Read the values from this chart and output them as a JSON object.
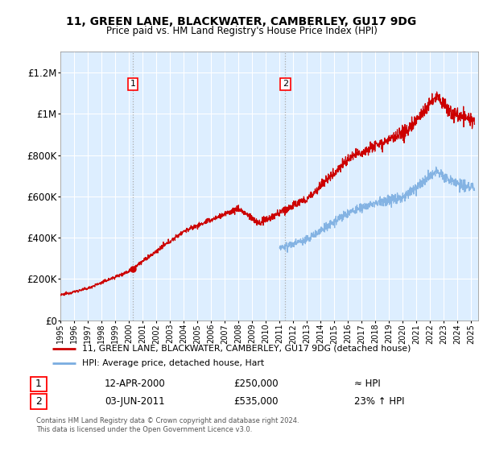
{
  "title": "11, GREEN LANE, BLACKWATER, CAMBERLEY, GU17 9DG",
  "subtitle": "Price paid vs. HM Land Registry's House Price Index (HPI)",
  "legend_line1": "11, GREEN LANE, BLACKWATER, CAMBERLEY, GU17 9DG (detached house)",
  "legend_line2": "HPI: Average price, detached house, Hart",
  "annotation1_date": "12-APR-2000",
  "annotation1_price": "£250,000",
  "annotation1_hpi": "≈ HPI",
  "annotation2_date": "03-JUN-2011",
  "annotation2_price": "£535,000",
  "annotation2_hpi": "23% ↑ HPI",
  "footer1": "Contains HM Land Registry data © Crown copyright and database right 2024.",
  "footer2": "This data is licensed under the Open Government Licence v3.0.",
  "red_color": "#cc0000",
  "blue_color": "#7aade0",
  "bg_color": "#ddeeff",
  "sale1_x": 2000.28,
  "sale1_y": 250000,
  "sale2_x": 2011.42,
  "sale2_y": 535000,
  "ylim": [
    0,
    1300000
  ],
  "xlim": [
    1995,
    2025.5
  ]
}
